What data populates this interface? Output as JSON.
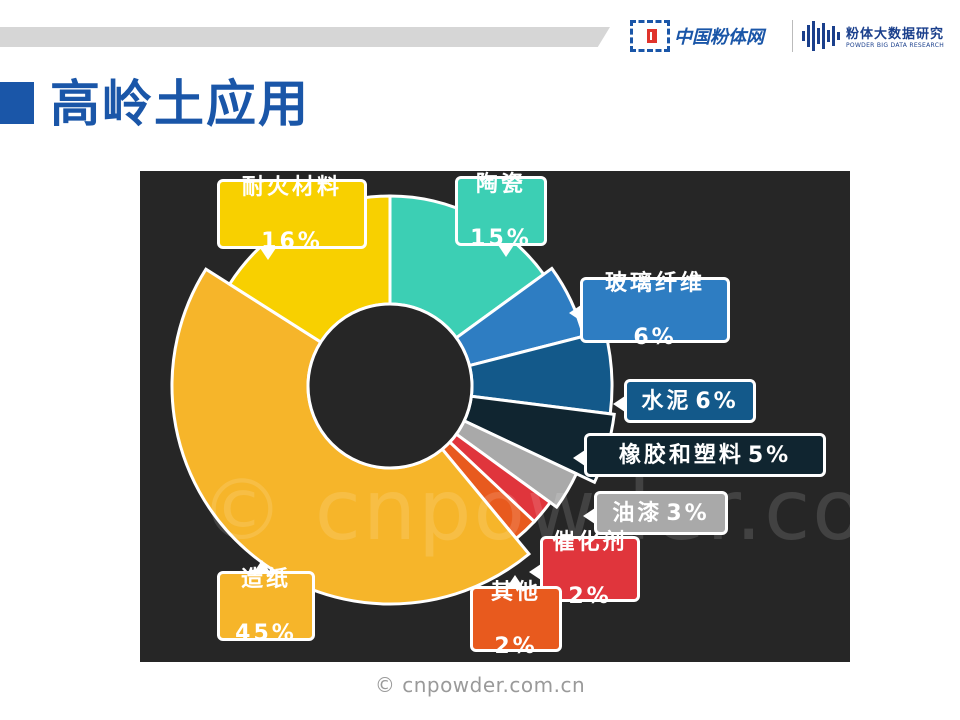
{
  "header": {
    "logo_text": "中国粉体网",
    "logo2_text": "粉体大数据研究",
    "logo2_subtext": "POWDER BIG DATA RESEARCH"
  },
  "page_title": "高岭土应用",
  "watermark": "© cnpowder.com.cn",
  "footer": "© cnpowder.com.cn",
  "chart_data": {
    "type": "pie",
    "donut": true,
    "title": "",
    "legend": "none",
    "slices": [
      {
        "name": "陶瓷",
        "percent_label": "15%",
        "value": 15,
        "color": "#3ccfb4"
      },
      {
        "name": "玻璃纤维",
        "percent_label": "6%",
        "value": 6,
        "color": "#2e7dc2"
      },
      {
        "name": "水泥",
        "percent_label": "6%",
        "value": 6,
        "color": "#13598a"
      },
      {
        "name": "橡胶和塑料",
        "percent_label": "5%",
        "value": 5,
        "color": "#102530"
      },
      {
        "name": "油漆",
        "percent_label": "3%",
        "value": 3,
        "color": "#a9a9a9"
      },
      {
        "name": "催化剂",
        "percent_label": "2%",
        "value": 2,
        "color": "#e0353c"
      },
      {
        "name": "其他",
        "percent_label": "2%",
        "value": 2,
        "color": "#e85a1e"
      },
      {
        "name": "造纸",
        "percent_label": "45%",
        "value": 45,
        "color": "#f6b52a"
      },
      {
        "name": "耐火材料",
        "percent_label": "16%",
        "value": 16,
        "color": "#f8d000"
      }
    ]
  }
}
